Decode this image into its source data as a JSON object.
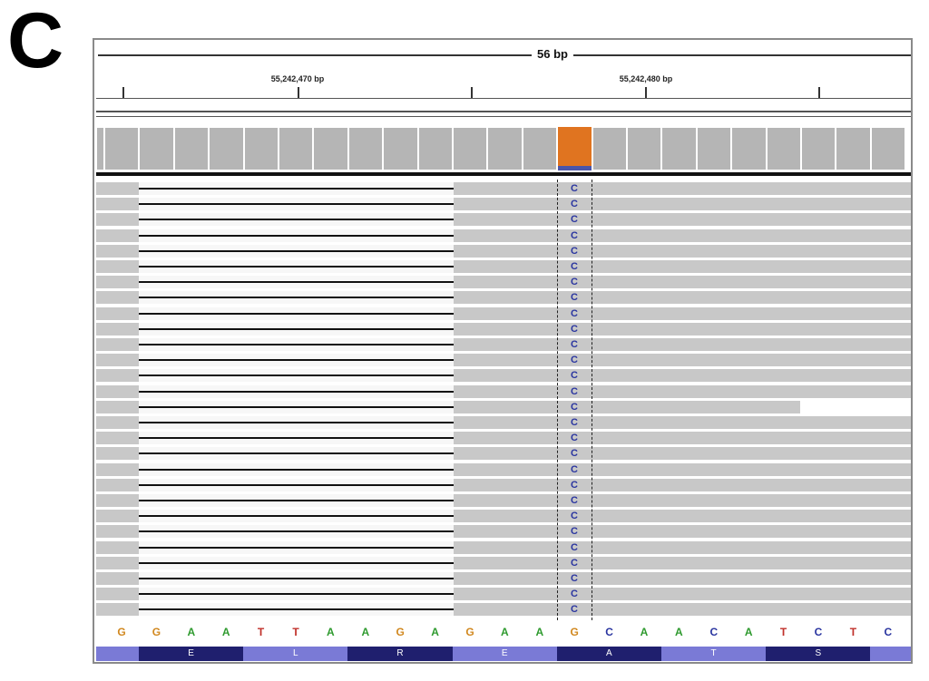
{
  "panel_label": "C",
  "ruler": {
    "span_label": "56 bp",
    "coords": [
      "55,242,470 bp",
      "55,242,480 bp"
    ]
  },
  "sequence": {
    "bases": [
      "G",
      "G",
      "A",
      "A",
      "T",
      "T",
      "A",
      "A",
      "G",
      "A",
      "G",
      "A",
      "A",
      "G",
      "C",
      "A",
      "A",
      "C",
      "A",
      "T",
      "C",
      "T",
      "C"
    ],
    "base_colors": {
      "A": "#2e9a2e",
      "C": "#2a35a0",
      "G": "#d1881f",
      "T": "#c0302a"
    }
  },
  "translation": {
    "amino_acids": [
      "E",
      "L",
      "R",
      "E",
      "A",
      "T",
      "S"
    ],
    "colors": [
      "#1f1f6e",
      "#7a7ad6"
    ]
  },
  "alignment": {
    "read_count": 28,
    "mismatch_base": "C",
    "mismatch_color": "#2a35a0",
    "coverage_mutation_color": "#e07420"
  }
}
